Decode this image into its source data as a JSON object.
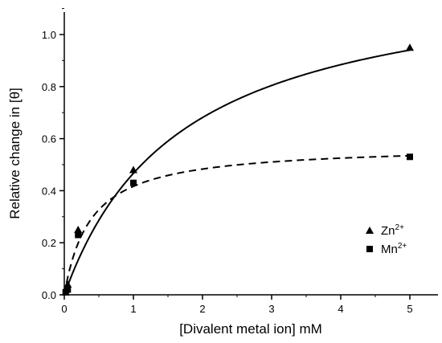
{
  "chart_data": {
    "type": "scatter",
    "title": "",
    "xlabel": "[Divalent metal ion] mM",
    "ylabel": "Relative change in [θ]",
    "xlim": [
      0,
      5.5
    ],
    "ylim": [
      0,
      1.1
    ],
    "xticks": [
      0,
      1,
      2,
      3,
      4,
      5
    ],
    "yticks": [
      0.0,
      0.2,
      0.4,
      0.6,
      0.8,
      1.0
    ],
    "xtick_labels": [
      "0",
      "1",
      "2",
      "3",
      "4",
      "5"
    ],
    "ytick_labels": [
      "0.0",
      "0.2",
      "0.4",
      "0.6",
      "0.8",
      "1.0"
    ],
    "grid": false,
    "legend_position": "lower-right",
    "series": [
      {
        "name": "Zn2+",
        "legend_base": "Zn",
        "legend_sup": "2+",
        "marker": "triangle",
        "points": [
          {
            "x": 0.02,
            "y": 0.01
          },
          {
            "x": 0.05,
            "y": 0.04
          },
          {
            "x": 0.2,
            "y": 0.25
          },
          {
            "x": 1.0,
            "y": 0.48
          },
          {
            "x": 5.0,
            "y": 0.95
          }
        ],
        "fit": {
          "style": "solid",
          "model": "hyperbolic",
          "bmax": 1.26,
          "kd": 1.7
        }
      },
      {
        "name": "Mn2+",
        "legend_base": "Mn",
        "legend_sup": "2+",
        "marker": "square",
        "points": [
          {
            "x": 0.02,
            "y": 0.01
          },
          {
            "x": 0.05,
            "y": 0.02
          },
          {
            "x": 0.2,
            "y": 0.23
          },
          {
            "x": 1.0,
            "y": 0.43
          },
          {
            "x": 5.0,
            "y": 0.53
          }
        ],
        "fit": {
          "style": "dashed",
          "model": "hyperbolic",
          "bmax": 0.575,
          "kd": 0.38
        }
      }
    ]
  }
}
